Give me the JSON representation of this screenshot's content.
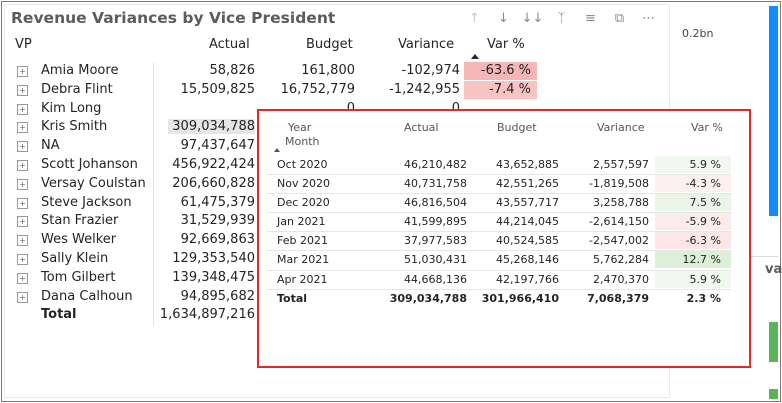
{
  "visual": {
    "title": "Revenue Variances by Vice President",
    "toolbar_icons": [
      "arrow-up-icon",
      "arrow-down-icon",
      "double-arrow-down-icon",
      "fork-icon",
      "filter-icon",
      "focus-mode-icon",
      "more-options-icon"
    ],
    "columns": {
      "vp": "VP",
      "actual": "Actual",
      "budget": "Budget",
      "variance": "Variance",
      "var_pct": "Var %"
    },
    "rows": [
      {
        "vp": "Amia Moore",
        "actual": "58,826",
        "budget": "161,800",
        "variance": "-102,974",
        "var_pct": "-63.6 %",
        "highlight": "#f4b6b6"
      },
      {
        "vp": "Debra Flint",
        "actual": "15,509,825",
        "budget": "16,752,779",
        "variance": "-1,242,955",
        "var_pct": "-7.4 %",
        "highlight": "#f7c3c3"
      },
      {
        "vp": "Kim Long",
        "actual": "",
        "budget": "0",
        "variance": "0",
        "var_pct": "",
        "highlight": ""
      },
      {
        "vp": "Kris Smith",
        "actual": "309,034,788",
        "budget": "",
        "variance": "",
        "var_pct": "",
        "highlight": ""
      },
      {
        "vp": "NA",
        "actual": "97,437,647",
        "budget": "",
        "variance": "",
        "var_pct": "",
        "highlight": ""
      },
      {
        "vp": "Scott Johanson",
        "actual": "456,922,424",
        "budget": "",
        "variance": "",
        "var_pct": "",
        "highlight": ""
      },
      {
        "vp": "Versay Coulstan",
        "actual": "206,660,828",
        "budget": "",
        "variance": "",
        "var_pct": "",
        "highlight": ""
      },
      {
        "vp": "Steve Jackson",
        "actual": "61,475,379",
        "budget": "",
        "variance": "",
        "var_pct": "",
        "highlight": ""
      },
      {
        "vp": "Stan Frazier",
        "actual": "31,529,939",
        "budget": "",
        "variance": "",
        "var_pct": "",
        "highlight": ""
      },
      {
        "vp": "Wes Welker",
        "actual": "92,669,863",
        "budget": "",
        "variance": "",
        "var_pct": "",
        "highlight": ""
      },
      {
        "vp": "Sally Klein",
        "actual": "129,353,540",
        "budget": "",
        "variance": "",
        "var_pct": "",
        "highlight": ""
      },
      {
        "vp": "Tom Gilbert",
        "actual": "139,348,475",
        "budget": "",
        "variance": "",
        "var_pct": "",
        "highlight": ""
      },
      {
        "vp": "Dana Calhoun",
        "actual": "94,895,682",
        "budget": "",
        "variance": "",
        "var_pct": "",
        "highlight": ""
      }
    ],
    "total": {
      "label": "Total",
      "actual": "1,634,897,216"
    },
    "hovered_row_color": "#e6e6e6"
  },
  "tooltip": {
    "columns": {
      "year": "Year",
      "month": "Month",
      "actual": "Actual",
      "budget": "Budget",
      "variance": "Variance",
      "var_pct": "Var %"
    },
    "rows": [
      {
        "month": "Oct 2020",
        "actual": "46,210,482",
        "budget": "43,652,885",
        "variance": "2,557,597",
        "var_pct": "5.9 %",
        "highlight": "#f1f8ef"
      },
      {
        "month": "Nov 2020",
        "actual": "40,731,758",
        "budget": "42,551,265",
        "variance": "-1,819,508",
        "var_pct": "-4.3 %",
        "highlight": "#fdf0f0"
      },
      {
        "month": "Dec 2020",
        "actual": "46,816,504",
        "budget": "43,557,717",
        "variance": "3,258,788",
        "var_pct": "7.5 %",
        "highlight": "#eaf5e7"
      },
      {
        "month": "Jan 2021",
        "actual": "41,599,895",
        "budget": "44,214,045",
        "variance": "-2,614,150",
        "var_pct": "-5.9 %",
        "highlight": "#fcebeb"
      },
      {
        "month": "Feb 2021",
        "actual": "37,977,583",
        "budget": "40,524,585",
        "variance": "-2,547,002",
        "var_pct": "-6.3 %",
        "highlight": "#fbe7e7"
      },
      {
        "month": "Mar 2021",
        "actual": "51,030,431",
        "budget": "45,268,146",
        "variance": "5,762,284",
        "var_pct": "12.7 %",
        "highlight": "#dcefd7"
      },
      {
        "month": "Apr 2021",
        "actual": "44,668,136",
        "budget": "42,197,766",
        "variance": "2,470,370",
        "var_pct": "5.9 %",
        "highlight": "#f1f8ef"
      }
    ],
    "total": {
      "label": "Total",
      "actual": "309,034,788",
      "budget": "301,966,410",
      "variance": "7,068,379",
      "var_pct": "2.3 %"
    },
    "border_color": "#e02b2b"
  },
  "side_visual": {
    "axis_label": "0.2bn",
    "title_fragment": "vari",
    "bar_color": "#118DFF",
    "bar_color_2": "#5ab45a"
  }
}
